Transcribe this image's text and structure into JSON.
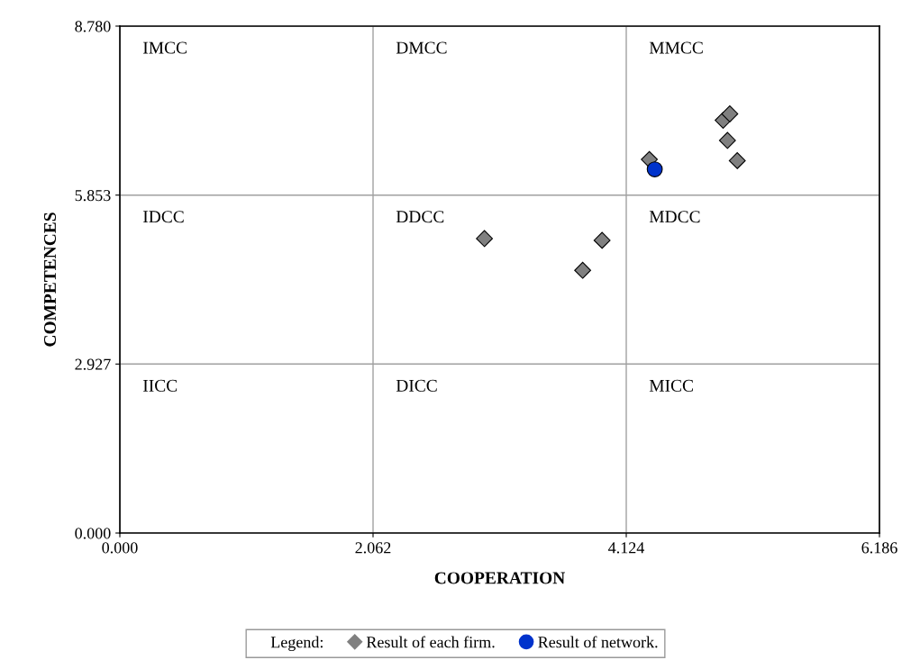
{
  "chart_data": {
    "type": "scatter",
    "xlabel": "COOPERATION",
    "ylabel": "COMPETENCES",
    "legend_title": "Legend:",
    "series": [
      {
        "name": "Result of each firm.",
        "color": "#808080",
        "marker": "diamond",
        "x": [
          2.969,
          3.927,
          3.769,
          4.312,
          4.913,
          4.967,
          4.948,
          5.028
        ],
        "values": [
          5.1,
          5.07,
          4.55,
          6.47,
          7.15,
          7.26,
          6.8,
          6.45
        ]
      },
      {
        "name": "Result of network.",
        "color": "#0033cc",
        "marker": "circle",
        "x": [
          4.356
        ],
        "values": [
          6.3
        ]
      }
    ],
    "xlim": [
      0,
      6.186
    ],
    "ylim": [
      0,
      8.78
    ],
    "xticks": [
      {
        "value": 0,
        "label": "0.000"
      },
      {
        "value": 2.062,
        "label": "2.062"
      },
      {
        "value": 4.124,
        "label": "4.124"
      },
      {
        "value": 6.186,
        "label": "6.186"
      }
    ],
    "yticks": [
      {
        "value": 0,
        "label": "0.000"
      },
      {
        "value": 2.927,
        "label": "2.927"
      },
      {
        "value": 5.853,
        "label": "5.853"
      },
      {
        "value": 8.78,
        "label": "8.780"
      }
    ],
    "grid": true,
    "legend": "bottom",
    "annotations": [
      "IMCC",
      "DMCC",
      "MMCC",
      "IDCC",
      "DDCC",
      "MDCC",
      "IICC",
      "DICC",
      "MICC"
    ]
  }
}
